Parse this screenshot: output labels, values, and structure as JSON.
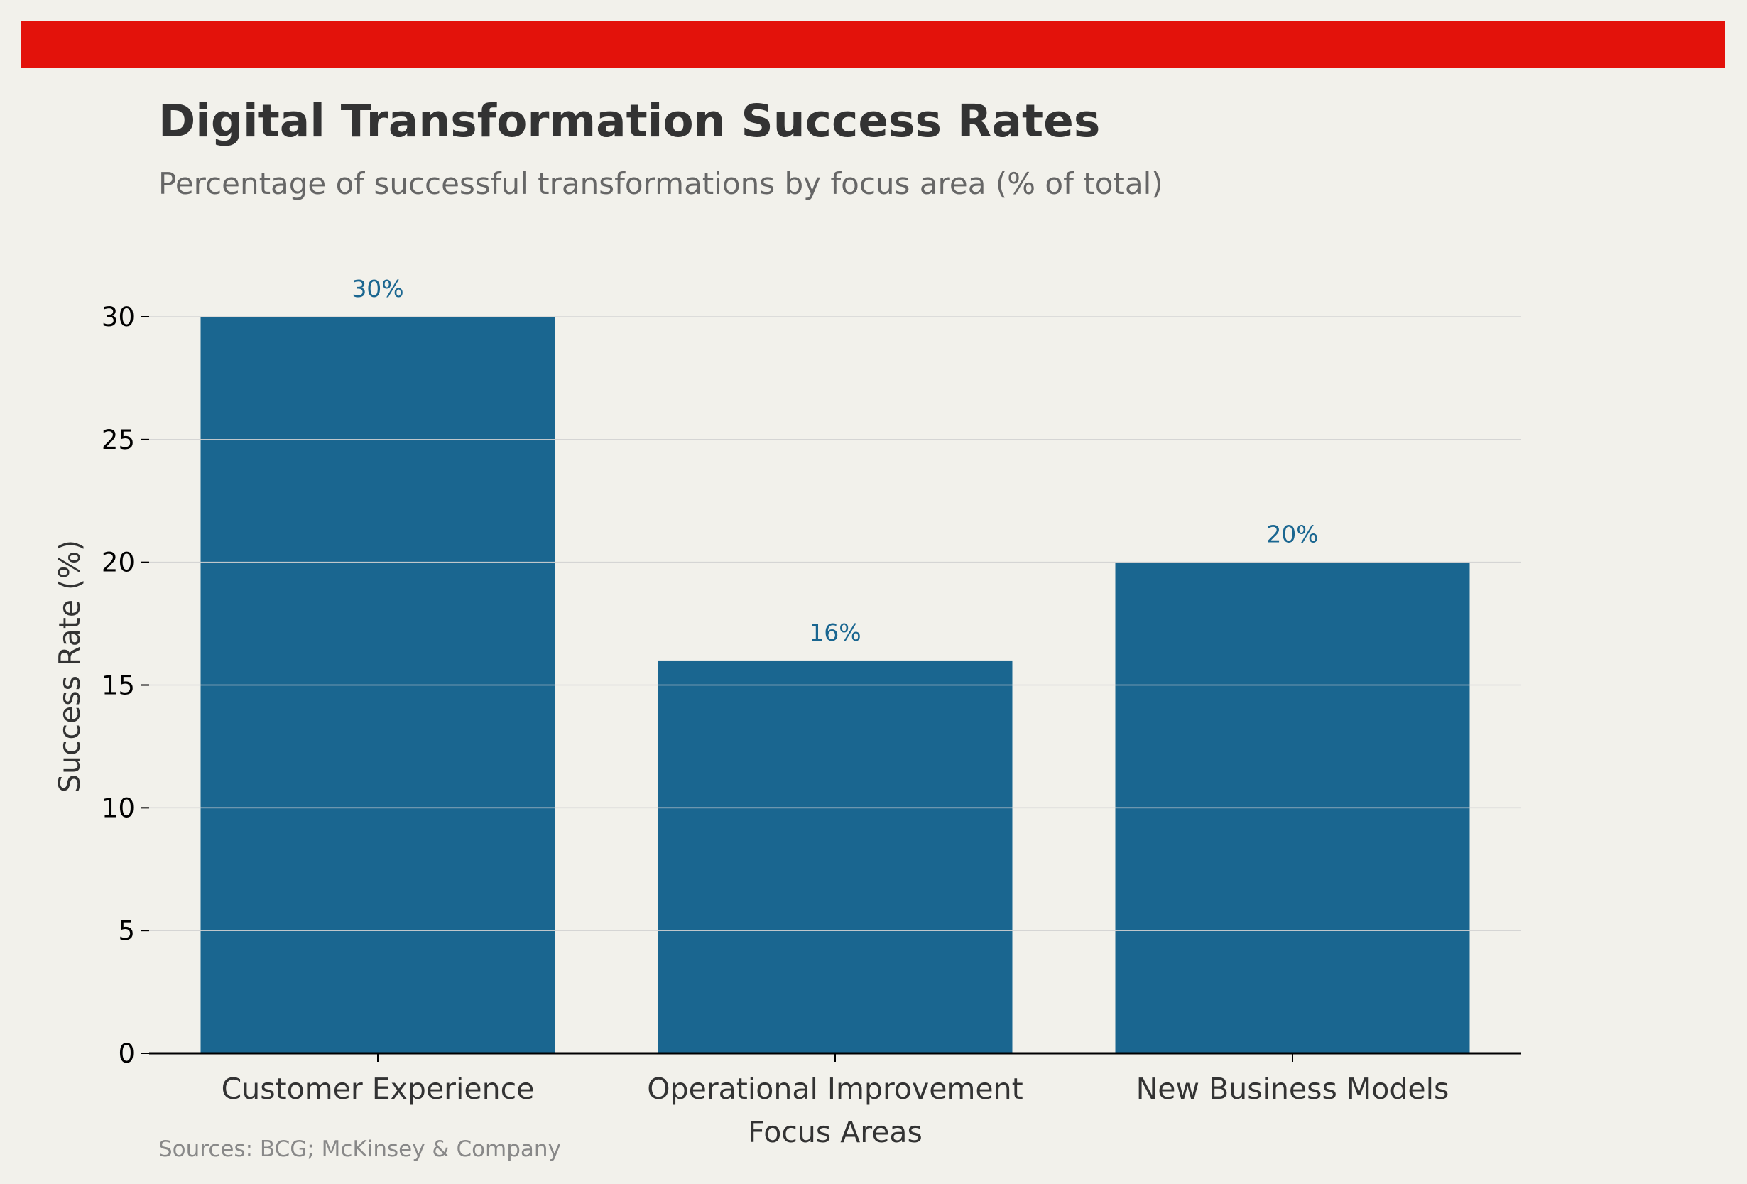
{
  "header": {
    "title": "Digital Transformation Success Rates",
    "subtitle": "Percentage of successful transformations by focus area (% of total)",
    "accent_bar_color": "#e3120b"
  },
  "footer": {
    "source": "Sources: BCG; McKinsey & Company"
  },
  "chart_data": {
    "type": "bar",
    "title": "Digital Transformation Success Rates",
    "subtitle": "Percentage of successful transformations by focus area (% of total)",
    "categories": [
      "Customer Experience",
      "Operational Improvement",
      "New Business Models"
    ],
    "values": [
      30,
      16,
      20
    ],
    "data_labels": [
      "30%",
      "16%",
      "20%"
    ],
    "xlabel": "Focus Areas",
    "ylabel": "Success Rate (%)",
    "ylim": [
      0,
      30
    ],
    "yticks": [
      0,
      5,
      10,
      15,
      20,
      25,
      30
    ],
    "grid": "y",
    "legend": "none",
    "bar_color": "#1a6690",
    "label_color": "#1a6690"
  }
}
